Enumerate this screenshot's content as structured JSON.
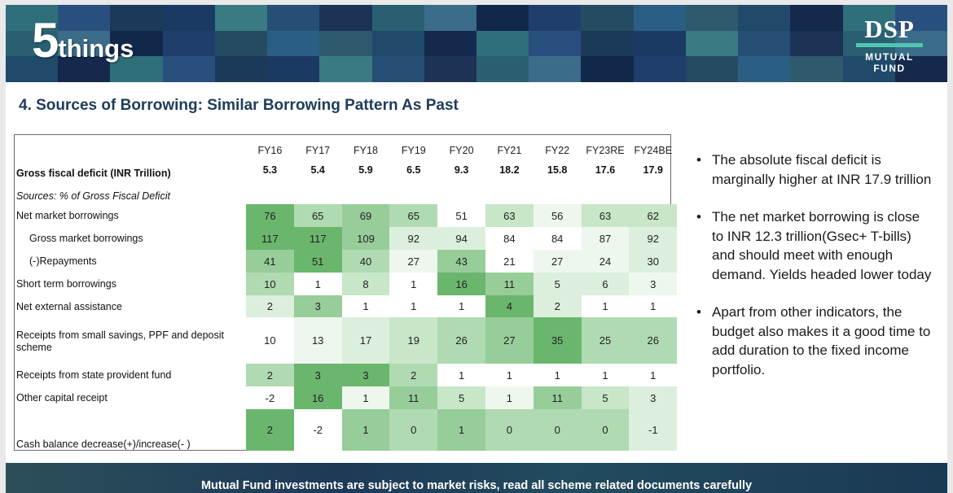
{
  "brand": {
    "number": "5",
    "word": "things"
  },
  "logo": {
    "name": "DSP",
    "subtitle": "MUTUAL FUND"
  },
  "title": "4. Sources of Borrowing: Similar Borrowing Pattern As Past",
  "table": {
    "years": [
      "FY16",
      "FY17",
      "FY18",
      "FY19",
      "FY20",
      "FY21",
      "FY22",
      "FY23RE",
      "FY24BE"
    ],
    "deficit_label": "Gross fiscal deficit (INR Trillion)",
    "deficit_values": [
      "5.3",
      "5.4",
      "5.9",
      "6.5",
      "9.3",
      "18.2",
      "15.8",
      "17.6",
      "17.9"
    ],
    "sources_label": "Sources: % of Gross Fiscal Deficit",
    "rows": [
      {
        "label": "Net market borrowings",
        "values": [
          "76",
          "65",
          "69",
          "65",
          "51",
          "63",
          "56",
          "63",
          "62"
        ]
      },
      {
        "label": "Gross market  borrowings",
        "values": [
          "117",
          "117",
          "109",
          "92",
          "94",
          "84",
          "84",
          "87",
          "92"
        ]
      },
      {
        "label": "(-)Repayments",
        "values": [
          "41",
          "51",
          "40",
          "27",
          "43",
          "21",
          "27",
          "24",
          "30"
        ]
      },
      {
        "label": "Short term  borrowings",
        "values": [
          "10",
          "1",
          "8",
          "1",
          "16",
          "11",
          "5",
          "6",
          "3"
        ]
      },
      {
        "label": "Net external  assistance",
        "values": [
          "2",
          "3",
          "1",
          "1",
          "1",
          "4",
          "2",
          "1",
          "1"
        ]
      },
      {
        "label": "Receipts from small  savings, PPF and  deposit scheme",
        "values": [
          "10",
          "13",
          "17",
          "19",
          "26",
          "27",
          "35",
          "25",
          "26"
        ]
      },
      {
        "label": "Receipts from state  provident fund",
        "values": [
          "2",
          "3",
          "3",
          "2",
          "1",
          "1",
          "1",
          "1",
          "1"
        ]
      },
      {
        "label": "Other capital  receipt",
        "values": [
          "-2",
          "16",
          "1",
          "11",
          "5",
          "1",
          "11",
          "5",
          "3"
        ]
      },
      {
        "label": "Cash balance  decrease(+)/increase(- )",
        "values": [
          "2",
          "-2",
          "1",
          "0",
          "1",
          "0",
          "0",
          "0",
          "-1"
        ]
      }
    ]
  },
  "bullets": [
    "The absolute fiscal deficit is marginally higher at INR 17.9 trillion",
    "The net market borrowing is close to INR 12.3 trillion(Gsec+ T-bills) and should meet with enough demand. Yields headed lower today",
    "Apart from other indicators, the budget also makes it a good time to add duration to the fixed income portfolio."
  ],
  "footer": "Mutual Fund investments are subject to market risks, read all scheme related documents carefully"
}
